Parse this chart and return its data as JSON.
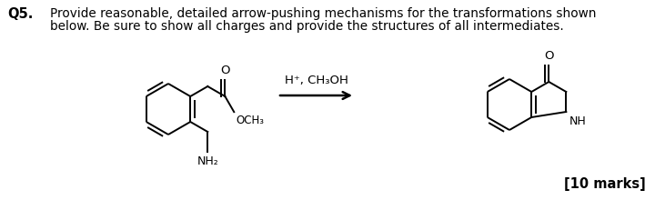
{
  "bg_color": "#ffffff",
  "text_color": "#000000",
  "q_label": "Q5.",
  "question_line1": "Provide reasonable, detailed arrow-pushing mechanisms for the transformations shown",
  "question_line2": "below. Be sure to show all charges and provide the structures of all intermediates.",
  "reagent_line1": "H⁺, CH₃OH",
  "marks_text": "[10 marks]",
  "lw": 1.4,
  "font_q": 10.5,
  "font_text": 9.8,
  "font_mol": 9.0,
  "font_marks": 10.5
}
